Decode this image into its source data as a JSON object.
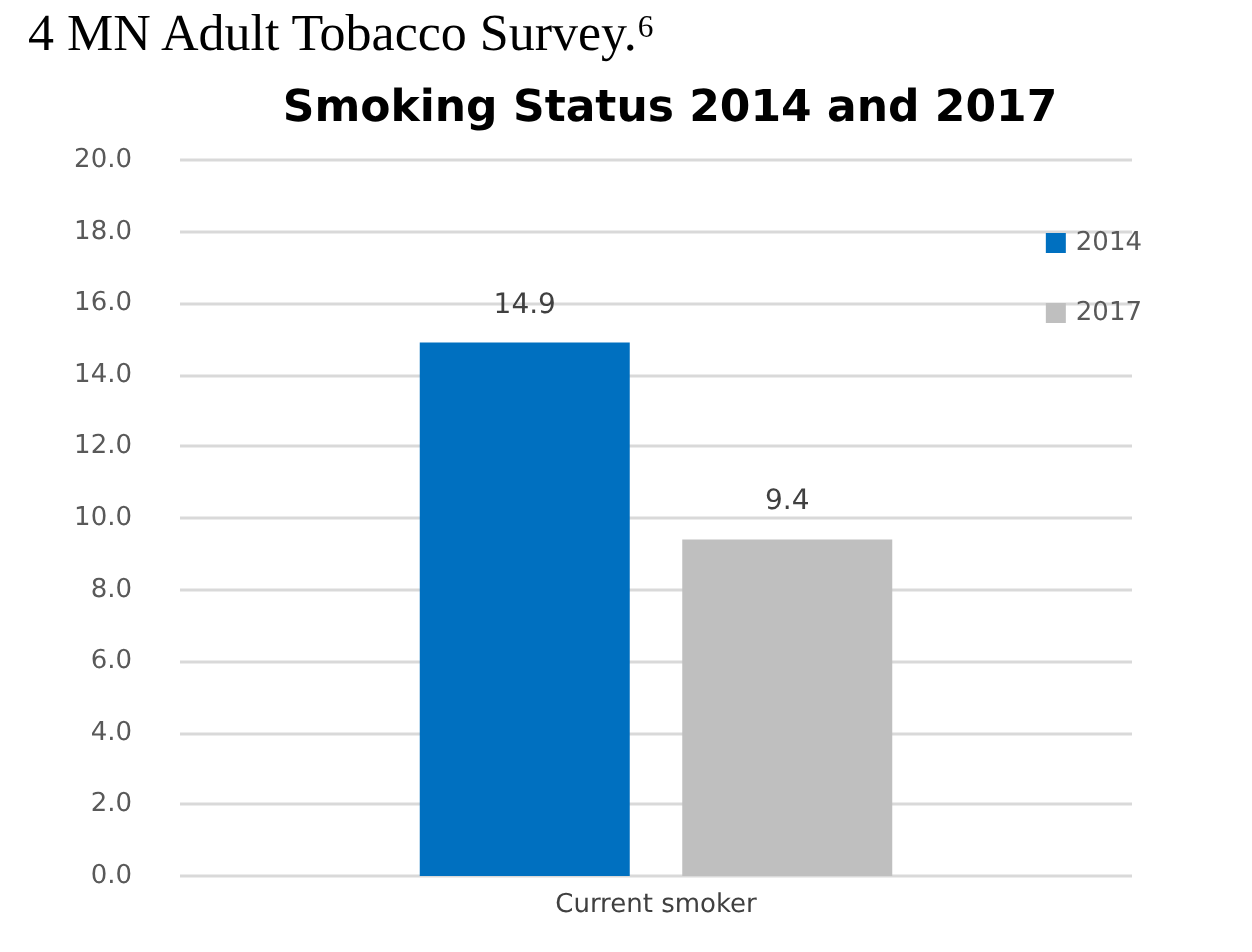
{
  "chart_data": {
    "type": "bar",
    "title": "Smoking Status 2014 and 2017",
    "annotations": [
      "4 MN Adult Tobacco Survey.⁶"
    ],
    "categories": [
      "Current smoker"
    ],
    "series": [
      {
        "name": "2014",
        "color": "#0070c0",
        "values": [
          14.9
        ]
      },
      {
        "name": "2017",
        "color": "#bfbfbf",
        "values": [
          9.4
        ]
      }
    ],
    "ylim": [
      0,
      20
    ],
    "yticks": [
      {
        "value": 0,
        "label": "0.0"
      },
      {
        "value": 2,
        "label": "2.0"
      },
      {
        "value": 4,
        "label": "4.0"
      },
      {
        "value": 6,
        "label": "6.0"
      },
      {
        "value": 8,
        "label": "8.0"
      },
      {
        "value": 10,
        "label": "10.0"
      },
      {
        "value": 12,
        "label": "12.0"
      },
      {
        "value": 14,
        "label": "14.0"
      },
      {
        "value": 16,
        "label": "16.0"
      },
      {
        "value": 18,
        "label": "18.0"
      },
      {
        "value": 20,
        "label": "20.0"
      }
    ],
    "grid": "y",
    "legend": "top right",
    "data_labels": true
  }
}
